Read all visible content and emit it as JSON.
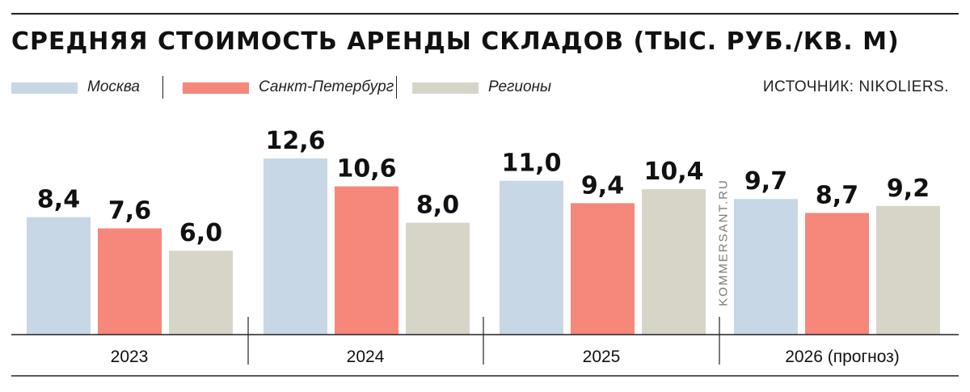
{
  "title": "СРЕДНЯЯ СТОИМОСТЬ АРЕНДЫ СКЛАДОВ (ТЫС. РУБ./КВ. М)",
  "source": "ИСТОЧНИК: NIKOLIERS.",
  "watermark": "KOMMERSANT.RU",
  "colors": {
    "moscow": "#c7d7e6",
    "spb": "#f5887a",
    "regions": "#d7d5c8"
  },
  "chart_data": {
    "type": "bar",
    "title": "СРЕДНЯЯ СТОИМОСТЬ АРЕНДЫ СКЛАДОВ (ТЫС. РУБ./КВ. М)",
    "categories": [
      "2023",
      "2024",
      "2025",
      "2026 (прогноз)"
    ],
    "series": [
      {
        "name": "Москва",
        "values": [
          8.4,
          12.6,
          11.0,
          9.7
        ],
        "labels": [
          "8,4",
          "12,6",
          "11,0",
          "9,7"
        ]
      },
      {
        "name": "Санкт-Петербург",
        "values": [
          7.6,
          10.6,
          9.4,
          8.7
        ],
        "labels": [
          "7,6",
          "10,6",
          "9,4",
          "8,7"
        ]
      },
      {
        "name": "Регионы",
        "values": [
          6.0,
          8.0,
          10.4,
          9.2
        ],
        "labels": [
          "6,0",
          "8,0",
          "10,4",
          "9,2"
        ]
      }
    ],
    "ylim": [
      0,
      13
    ],
    "grid": false,
    "legend": "top-left"
  }
}
